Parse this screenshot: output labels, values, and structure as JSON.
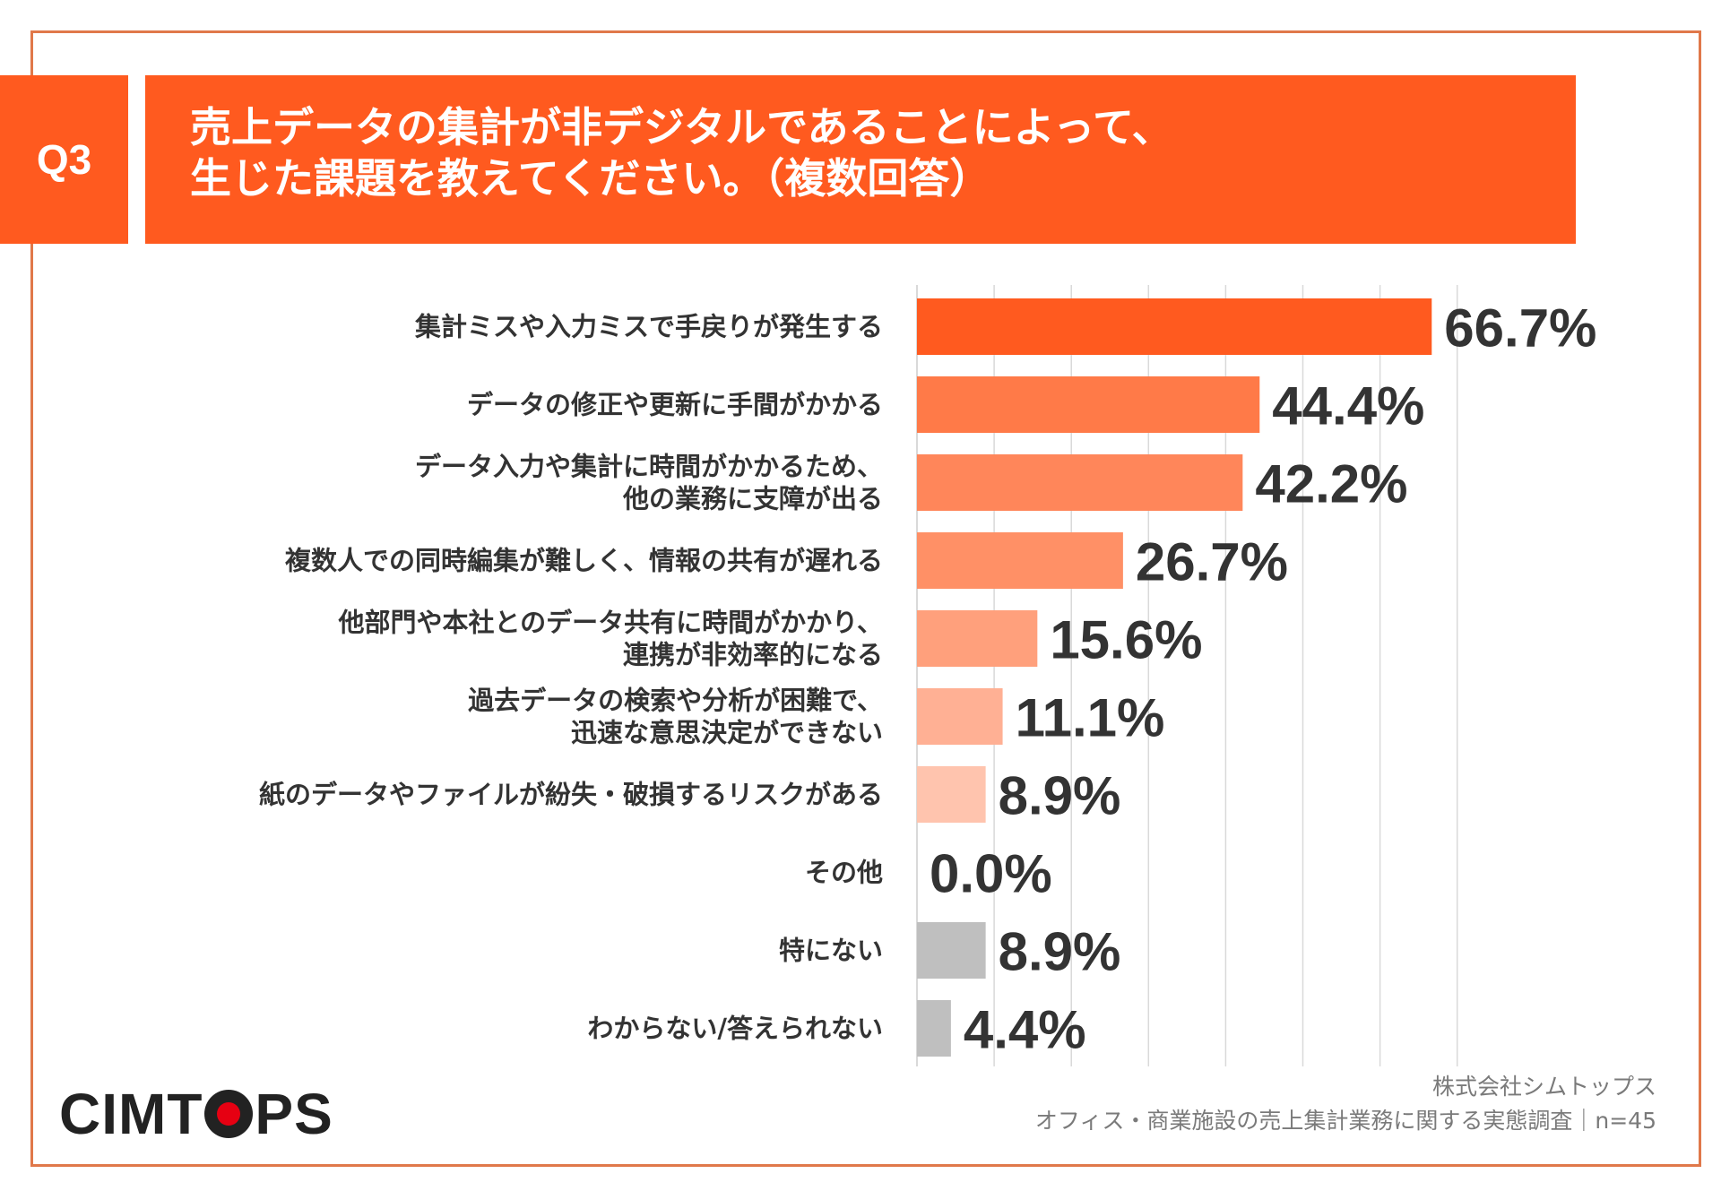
{
  "question": {
    "badge": "Q3",
    "title_line1": "売上データの集計が非デジタルであることによって、",
    "title_line2": "生じた課題を教えてください。（複数回答）"
  },
  "colors": {
    "header": "#FF5A1F",
    "frame": "#E0784A",
    "grid": "#D9D9D9",
    "text": "#333333",
    "gray_bar": "#BFBFBF"
  },
  "chart_data": {
    "type": "bar",
    "orientation": "horizontal",
    "unit": "%",
    "xlim": [
      0,
      100
    ],
    "grid": true,
    "categories": [
      [
        "集計ミスや入力ミスで手戻りが発生する"
      ],
      [
        "データの修正や更新に手間がかかる"
      ],
      [
        "データ入力や集計に時間がかかるため、",
        "他の業務に支障が出る"
      ],
      [
        "複数人での同時編集が難しく、情報の共有が遅れる"
      ],
      [
        "他部門や本社とのデータ共有に時間がかかり、",
        "連携が非効率的になる"
      ],
      [
        "過去データの検索や分析が困難で、",
        "迅速な意思決定ができない"
      ],
      [
        "紙のデータやファイルが紛失・破損するリスクがある"
      ],
      [
        "その他"
      ],
      [
        "特にない"
      ],
      [
        "わからない/答えられない"
      ]
    ],
    "values": [
      66.7,
      44.4,
      42.2,
      26.7,
      15.6,
      11.1,
      8.9,
      0.0,
      8.9,
      4.4
    ],
    "value_labels": [
      "66.7%",
      "44.4%",
      "42.2%",
      "26.7%",
      "15.6%",
      "11.1%",
      "8.9%",
      "0.0%",
      "8.9%",
      "4.4%"
    ],
    "bar_colors": [
      "#FF5A1F",
      "#FF7A48",
      "#FF865A",
      "#FF9066",
      "#FFA07C",
      "#FFB094",
      "#FFC4AE",
      "#FFD4C4",
      "#BFBFBF",
      "#BFBFBF"
    ]
  },
  "footer": {
    "logo_part1": "CIMT",
    "logo_part2": "PS",
    "company": "株式会社シムトップス",
    "survey": "オフィス・商業施設の売上集計業務に関する実態調査｜n=45"
  }
}
